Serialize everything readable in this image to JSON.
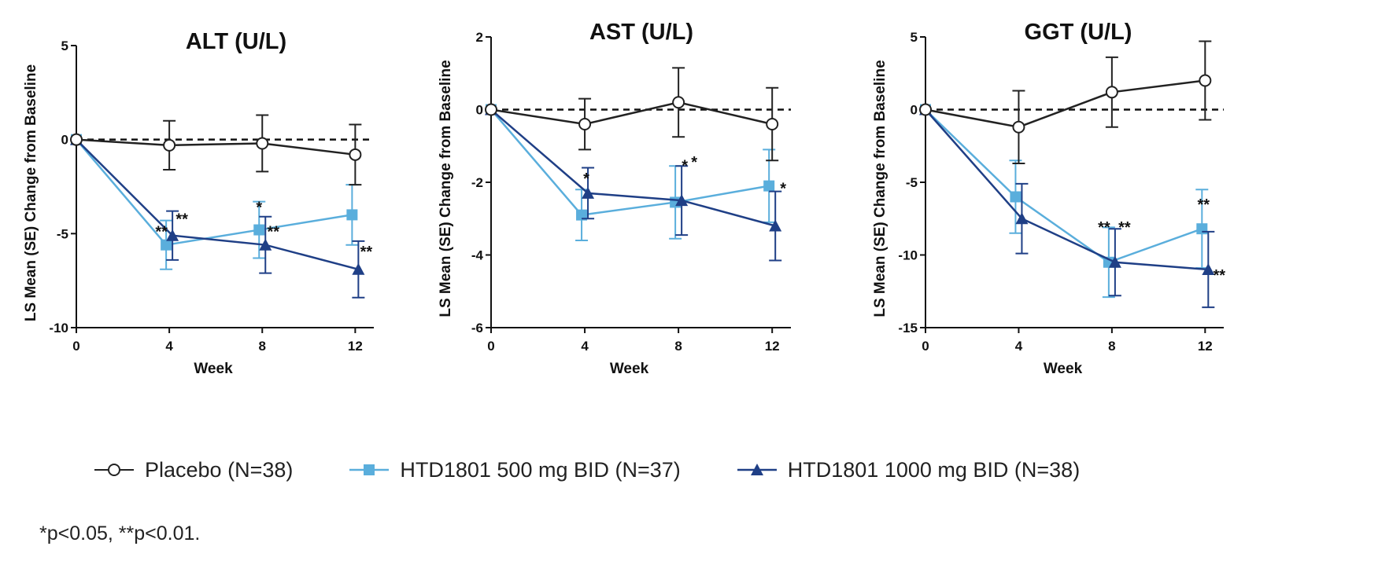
{
  "chart_data": [
    {
      "type": "line",
      "title": "ALT (U/L)",
      "xlabel": "Week",
      "ylabel": "LS Mean (SE) Change from Baseline",
      "x": [
        0,
        4,
        8,
        12
      ],
      "xticks": [
        "0",
        "4",
        "8",
        "12"
      ],
      "yticks": [
        "-10",
        "-5",
        "0",
        "5"
      ],
      "xlim": [
        0,
        12.8
      ],
      "ylim": [
        -10,
        5
      ],
      "reference_line": 0,
      "series": [
        {
          "name": "Placebo (N=38)",
          "values": [
            0,
            -0.3,
            -0.2,
            -0.8
          ],
          "se": [
            0,
            1.3,
            1.5,
            1.6
          ]
        },
        {
          "name": "HTD1801 500 mg BID (N=37)",
          "values": [
            0,
            -5.6,
            -4.8,
            -4.0
          ],
          "se": [
            0,
            1.3,
            1.5,
            1.6
          ]
        },
        {
          "name": "HTD1801 1000 mg BID (N=38)",
          "values": [
            0,
            -5.1,
            -5.6,
            -6.9
          ],
          "se": [
            0,
            1.3,
            1.5,
            1.5
          ]
        }
      ],
      "annotations": [
        {
          "text": "**",
          "x": 4,
          "y": -5.6
        },
        {
          "text": "**",
          "x": 4,
          "y": -5.1
        },
        {
          "text": "*",
          "x": 8,
          "y": -4.8
        },
        {
          "text": "**",
          "x": 8,
          "y": -5.6
        },
        {
          "text": "**",
          "x": 12,
          "y": -6.9
        }
      ]
    },
    {
      "type": "line",
      "title": "AST (U/L)",
      "xlabel": "Week",
      "ylabel": "LS Mean (SE) Change from Baseline",
      "x": [
        0,
        4,
        8,
        12
      ],
      "xticks": [
        "0",
        "4",
        "8",
        "12"
      ],
      "yticks": [
        "-6",
        "-4",
        "-2",
        "0",
        "2"
      ],
      "xlim": [
        0,
        12.8
      ],
      "ylim": [
        -6,
        2
      ],
      "reference_line": 0,
      "series": [
        {
          "name": "Placebo (N=38)",
          "values": [
            0,
            -0.4,
            0.2,
            -0.4
          ],
          "se": [
            0,
            0.7,
            0.95,
            1.0
          ]
        },
        {
          "name": "HTD1801 500 mg BID (N=37)",
          "values": [
            0,
            -2.9,
            -2.55,
            -2.1
          ],
          "se": [
            0,
            0.7,
            1.0,
            1.0
          ]
        },
        {
          "name": "HTD1801 1000 mg BID (N=38)",
          "values": [
            0,
            -2.3,
            -2.5,
            -3.2
          ],
          "se": [
            0,
            0.7,
            0.95,
            0.95
          ]
        }
      ],
      "annotations": [
        {
          "text": "*",
          "x": 4,
          "y": -2.3
        },
        {
          "text": "*",
          "x": 8,
          "y": -2.55
        },
        {
          "text": "*",
          "x": 8,
          "y": -2.5
        },
        {
          "text": "*",
          "x": 12,
          "y": -2.1
        }
      ]
    },
    {
      "type": "line",
      "title": "GGT (U/L)",
      "xlabel": "Week",
      "ylabel": "LS Mean (SE) Change from Baseline",
      "x": [
        0,
        4,
        8,
        12
      ],
      "xticks": [
        "0",
        "4",
        "8",
        "12"
      ],
      "yticks": [
        "-15",
        "-10",
        "-5",
        "0",
        "5"
      ],
      "xlim": [
        0,
        12.8
      ],
      "ylim": [
        -15,
        5
      ],
      "reference_line": 0,
      "series": [
        {
          "name": "Placebo (N=38)",
          "values": [
            0,
            -1.2,
            1.2,
            2.0
          ],
          "se": [
            0,
            2.5,
            2.4,
            2.7
          ]
        },
        {
          "name": "HTD1801 500 mg BID (N=37)",
          "values": [
            0,
            -6.0,
            -10.5,
            -8.2
          ],
          "se": [
            0,
            2.5,
            2.4,
            2.7
          ]
        },
        {
          "name": "HTD1801 1000 mg BID (N=38)",
          "values": [
            0,
            -7.5,
            -10.5,
            -11.0
          ],
          "se": [
            0,
            2.4,
            2.3,
            2.6
          ]
        }
      ],
      "annotations": [
        {
          "text": "**",
          "x": 8,
          "y": -10.5
        },
        {
          "text": "**",
          "x": 8,
          "y": -10.5
        },
        {
          "text": "**",
          "x": 12,
          "y": -8.2
        },
        {
          "text": "**",
          "x": 12,
          "y": -11.0
        }
      ]
    }
  ],
  "legend": {
    "position": "bottom",
    "items": [
      {
        "label": "Placebo (N=38)",
        "marker": "open-circle",
        "color": "#222222"
      },
      {
        "label": "HTD1801 500 mg BID (N=37)",
        "marker": "square",
        "color": "#5aaedc"
      },
      {
        "label": "HTD1801 1000 mg BID (N=38)",
        "marker": "triangle",
        "color": "#1f3f86"
      }
    ]
  },
  "footnote": "*p<0.05, **p<0.01.",
  "colors": {
    "placebo": "#222222",
    "low_dose": "#5aaedc",
    "high_dose": "#1f3f86",
    "axis": "#111111"
  }
}
